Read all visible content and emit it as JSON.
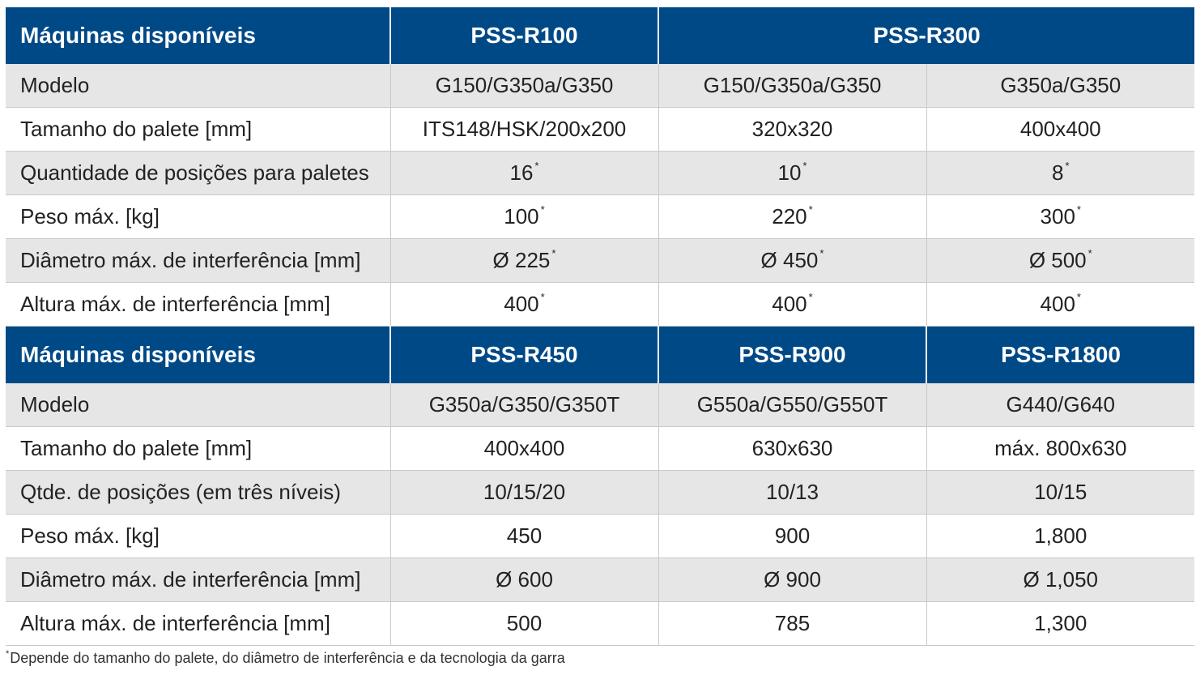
{
  "section1": {
    "header": [
      "Máquinas disponíveis",
      "PSS-R100",
      "PSS-R300"
    ],
    "rows": [
      {
        "label": "Modelo",
        "cells": [
          {
            "v": "G150/G350a/G350"
          },
          {
            "v": "G150/G350a/G350"
          },
          {
            "v": "G350a/G350"
          }
        ]
      },
      {
        "label": "Tamanho do palete [mm]",
        "cells": [
          {
            "v": "ITS148/HSK/200x200"
          },
          {
            "v": "320x320"
          },
          {
            "v": "400x400"
          }
        ]
      },
      {
        "label": "Quantidade de posições para paletes",
        "cells": [
          {
            "v": "16",
            "m": "*"
          },
          {
            "v": "10",
            "m": "*"
          },
          {
            "v": "8",
            "m": "*"
          }
        ]
      },
      {
        "label": "Peso máx. [kg]",
        "cells": [
          {
            "v": "100",
            "m": "*"
          },
          {
            "v": "220",
            "m": "*"
          },
          {
            "v": "300",
            "m": "*"
          }
        ]
      },
      {
        "label": "Diâmetro máx. de interferência [mm]",
        "cells": [
          {
            "v": "Ø 225",
            "m": "*"
          },
          {
            "v": "Ø 450",
            "m": "*"
          },
          {
            "v": "Ø 500",
            "m": "*"
          }
        ]
      },
      {
        "label": "Altura máx. de interferência [mm]",
        "cells": [
          {
            "v": "400",
            "m": "*"
          },
          {
            "v": "400",
            "m": "*"
          },
          {
            "v": "400",
            "m": "*"
          }
        ]
      }
    ]
  },
  "section2": {
    "header": [
      "Máquinas disponíveis",
      "PSS-R450",
      "PSS-R900",
      "PSS-R1800"
    ],
    "rows": [
      {
        "label": "Modelo",
        "cells": [
          {
            "v": "G350a/G350/G350T"
          },
          {
            "v": "G550a/G550/G550T"
          },
          {
            "v": "G440/G640"
          }
        ]
      },
      {
        "label": "Tamanho do palete [mm]",
        "cells": [
          {
            "v": "400x400"
          },
          {
            "v": "630x630"
          },
          {
            "v": "máx. 800x630"
          }
        ]
      },
      {
        "label": "Qtde. de posições (em três níveis)",
        "cells": [
          {
            "v": "10/15/20"
          },
          {
            "v": "10/13"
          },
          {
            "v": "10/15"
          }
        ]
      },
      {
        "label": "Peso máx. [kg]",
        "cells": [
          {
            "v": "450"
          },
          {
            "v": "900"
          },
          {
            "v": "1,800"
          }
        ]
      },
      {
        "label": "Diâmetro máx. de interferência [mm]",
        "cells": [
          {
            "v": "Ø 600"
          },
          {
            "v": "Ø 900"
          },
          {
            "v": "Ø 1,050"
          }
        ]
      },
      {
        "label": "Altura máx. de interferência [mm]",
        "cells": [
          {
            "v": "500"
          },
          {
            "v": "785"
          },
          {
            "v": "1,300"
          }
        ]
      }
    ]
  },
  "footnote": {
    "marker": "*",
    "text": "Depende do tamanho do palete, do diâmetro de interferência e da tecnologia da garra"
  },
  "colors": {
    "header_bg": "#004987",
    "header_text": "#ffffff",
    "stripe": "#e6e6e6",
    "divider": "#c9c9c9"
  }
}
